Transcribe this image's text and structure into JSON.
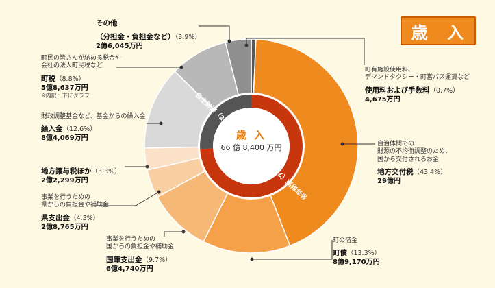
{
  "title": "歳 入",
  "center": {
    "title": "歳 入",
    "total": "66 億 8,400 万円"
  },
  "ring": {
    "dependent": {
      "label": "依存財源（74.0%）",
      "value": 74.0,
      "color": "#c8360e"
    },
    "independent": {
      "label": "自主財源（26.0%）",
      "value": 26.0,
      "color": "#555555"
    }
  },
  "chart_data": {
    "type": "pie",
    "unit": "%",
    "slices": [
      {
        "name": "使用料および手数料",
        "value": 0.7,
        "color": "#555555"
      },
      {
        "name": "地方交付税",
        "value": 43.4,
        "color": "#ef8a1f"
      },
      {
        "name": "町債",
        "value": 13.3,
        "color": "#f4a14a"
      },
      {
        "name": "国庫支出金",
        "value": 9.7,
        "color": "#f6b877"
      },
      {
        "name": "県支出金",
        "value": 4.3,
        "color": "#f8cfa3"
      },
      {
        "name": "地方譲与税ほか",
        "value": 3.3,
        "color": "#fae1c8"
      },
      {
        "name": "繰入金",
        "value": 12.6,
        "color": "#d9d9d9"
      },
      {
        "name": "町税",
        "value": 8.8,
        "color": "#b8b8b8"
      },
      {
        "name": "その他",
        "value": 3.9,
        "color": "#8f8f8f"
      }
    ]
  },
  "labels": {
    "fees": {
      "desc": "町有施設使用料、\nデマンドタクシー・町営バス運賃など",
      "name": "使用料および手数料",
      "pct": "（0.7%）",
      "amount": "4,675万円"
    },
    "kofu": {
      "desc": "自治体間での\n財源の不均衡調整のため、\n国から交付されるお金",
      "name": "地方交付税",
      "pct": "（43.4%）",
      "amount": "29億円"
    },
    "sai": {
      "desc": "町の借金",
      "name": "町債",
      "pct": "（13.3%）",
      "amount": "8億9,170万円"
    },
    "kokko": {
      "desc": "事業を行うための\n国からの負担金や補助金",
      "name": "国庫支出金",
      "pct": "（9.7%）",
      "amount": "6億4,740万円"
    },
    "ken": {
      "desc": "事業を行うための\n県からの負担金や補助金",
      "name": "県支出金",
      "pct": "（4.3%）",
      "amount": "2億8,765万円"
    },
    "joyo": {
      "desc": "",
      "name": "地方譲与税ほか",
      "pct": "（3.3%）",
      "amount": "2億2,299万円"
    },
    "kuri": {
      "desc": "財政調整基金など、基金からの繰入金",
      "name": "繰入金",
      "pct": "（12.6%）",
      "amount": "8億4,069万円"
    },
    "zei": {
      "desc": "町民の皆さんが納める税金や\n会社の法人町民税など",
      "name": "町税",
      "pct": "（8.8%）",
      "amount": "5億8,637万円",
      "note": "※内訳：下にグラフ"
    },
    "other": {
      "desc": "",
      "name": "その他\n（分担金・負担金など）",
      "pct": "（3.9%）",
      "amount": "2億6,045万円"
    }
  }
}
